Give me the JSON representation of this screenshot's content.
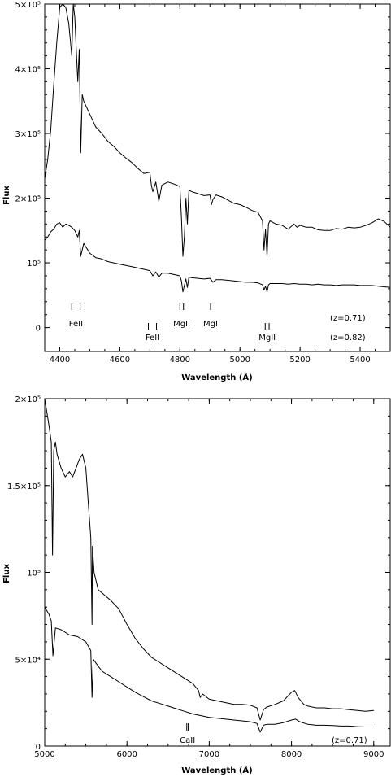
{
  "chart_data": [
    {
      "type": "line",
      "xlabel": "Wavelength (Å)",
      "ylabel": "Flux",
      "xlim": [
        4350,
        5500
      ],
      "ylim": [
        -37000,
        500000
      ],
      "xticks": [
        "4400",
        "4600",
        "4800",
        "5000",
        "5200",
        "5400"
      ],
      "xtick_values": [
        4400,
        4600,
        4800,
        5000,
        5200,
        5400
      ],
      "yticks": [
        "0",
        "10⁵",
        "2×10⁵",
        "3×10⁵",
        "4×10⁵",
        "5×10⁵"
      ],
      "ytick_values": [
        0,
        100000,
        200000,
        300000,
        400000,
        500000
      ],
      "series": [
        {
          "x": [
            4350,
            4360,
            4370,
            4380,
            4390,
            4400,
            4410,
            4420,
            4430,
            4440,
            4445,
            4450,
            4455,
            4460,
            4465,
            4470,
            4475,
            4480,
            4500,
            4520,
            4540,
            4560,
            4580,
            4600,
            4620,
            4640,
            4660,
            4680,
            4700,
            4705,
            4710,
            4720,
            4730,
            4735,
            4740,
            4760,
            4780,
            4800,
            4805,
            4810,
            4815,
            4820,
            4825,
            4830,
            4840,
            4860,
            4880,
            4900,
            4905,
            4910,
            4920,
            4940,
            4960,
            4980,
            5000,
            5020,
            5040,
            5060,
            5075,
            5080,
            5085,
            5090,
            5095,
            5100,
            5120,
            5140,
            5160,
            5180,
            5190,
            5200,
            5220,
            5240,
            5260,
            5280,
            5300,
            5320,
            5340,
            5360,
            5380,
            5400,
            5420,
            5440,
            5460,
            5480,
            5500
          ],
          "values": [
            230000,
            260000,
            305000,
            375000,
            440000,
            495000,
            500000,
            495000,
            470000,
            420000,
            500000,
            480000,
            430000,
            380000,
            430000,
            270000,
            360000,
            350000,
            330000,
            310000,
            300000,
            288000,
            280000,
            270000,
            262000,
            255000,
            246000,
            238000,
            240000,
            220000,
            210000,
            225000,
            195000,
            208000,
            220000,
            225000,
            222000,
            218000,
            170000,
            110000,
            140000,
            200000,
            160000,
            212000,
            210000,
            207000,
            204000,
            205000,
            190000,
            198000,
            205000,
            202000,
            197000,
            192000,
            190000,
            186000,
            181000,
            178000,
            165000,
            120000,
            152000,
            110000,
            160000,
            165000,
            160000,
            158000,
            152000,
            160000,
            155000,
            158000,
            155000,
            155000,
            151000,
            150000,
            150000,
            153000,
            152000,
            155000,
            154000,
            155000,
            158000,
            162000,
            168000,
            164000,
            155000
          ]
        },
        {
          "x": [
            4350,
            4360,
            4370,
            4380,
            4390,
            4400,
            4410,
            4420,
            4430,
            4440,
            4450,
            4460,
            4465,
            4470,
            4480,
            4500,
            4520,
            4540,
            4560,
            4580,
            4600,
            4620,
            4640,
            4660,
            4680,
            4700,
            4710,
            4720,
            4730,
            4740,
            4760,
            4780,
            4800,
            4805,
            4810,
            4815,
            4820,
            4825,
            4830,
            4840,
            4860,
            4880,
            4900,
            4910,
            4920,
            4940,
            4960,
            4980,
            5000,
            5020,
            5040,
            5060,
            5075,
            5080,
            5085,
            5090,
            5095,
            5100,
            5120,
            5140,
            5160,
            5180,
            5200,
            5220,
            5240,
            5260,
            5280,
            5300,
            5320,
            5340,
            5360,
            5380,
            5400,
            5420,
            5440,
            5460,
            5480,
            5500
          ],
          "values": [
            135000,
            140000,
            148000,
            152000,
            160000,
            162000,
            155000,
            160000,
            158000,
            155000,
            150000,
            140000,
            150000,
            110000,
            130000,
            115000,
            108000,
            106000,
            102000,
            100000,
            98000,
            96000,
            94000,
            92000,
            90000,
            88000,
            80000,
            86000,
            78000,
            84000,
            84000,
            82000,
            80000,
            72000,
            55000,
            65000,
            75000,
            62000,
            78000,
            77000,
            76000,
            75000,
            76000,
            70000,
            74000,
            74000,
            73000,
            72000,
            71000,
            70000,
            70000,
            69000,
            66000,
            58000,
            64000,
            55000,
            66000,
            68000,
            68000,
            68000,
            67000,
            68000,
            67000,
            67000,
            66000,
            67000,
            66000,
            66000,
            65000,
            66000,
            66000,
            66000,
            65000,
            65000,
            65000,
            64000,
            63000,
            62000
          ]
        }
      ],
      "line_markers": [
        {
          "label": "FeII",
          "wavelengths": [
            4440,
            4468
          ],
          "row": "upper"
        },
        {
          "label": "FeII",
          "wavelengths": [
            4695,
            4722
          ],
          "row": "lower"
        },
        {
          "label": "MgII",
          "wavelengths": [
            4800,
            4812
          ],
          "row": "upper"
        },
        {
          "label": "MgI",
          "wavelengths": [
            4902
          ],
          "row": "upper"
        },
        {
          "label": "MgII",
          "wavelengths": [
            5084,
            5097
          ],
          "row": "lower"
        }
      ],
      "annotations": [
        "(z=0.71)",
        "(z=0.82)"
      ]
    },
    {
      "type": "line",
      "xlabel": "Wavelength (Å)",
      "ylabel": "Flux",
      "xlim": [
        5000,
        9200
      ],
      "ylim": [
        0,
        200000
      ],
      "xticks": [
        "5000",
        "6000",
        "7000",
        "8000",
        "9000"
      ],
      "xtick_values": [
        5000,
        6000,
        7000,
        8000,
        9000
      ],
      "yticks": [
        "0",
        "5×10⁴",
        "10⁵",
        "1.5×10⁵",
        "2×10⁵"
      ],
      "ytick_values": [
        0,
        50000,
        100000,
        150000,
        200000
      ],
      "series": [
        {
          "x": [
            5000,
            5050,
            5080,
            5095,
            5110,
            5130,
            5150,
            5200,
            5250,
            5300,
            5340,
            5380,
            5420,
            5460,
            5500,
            5530,
            5560,
            5575,
            5580,
            5600,
            5650,
            5700,
            5800,
            5900,
            6000,
            6100,
            6200,
            6300,
            6400,
            6500,
            6600,
            6700,
            6800,
            6870,
            6890,
            6920,
            7000,
            7100,
            7200,
            7300,
            7400,
            7500,
            7580,
            7620,
            7660,
            7700,
            7800,
            7900,
            8000,
            8040,
            8080,
            8150,
            8200,
            8300,
            8400,
            8500,
            8600,
            8700,
            8800,
            8900,
            9000
          ],
          "values": [
            200000,
            185000,
            175000,
            110000,
            170000,
            175000,
            168000,
            160000,
            155000,
            158000,
            155000,
            160000,
            165000,
            168000,
            160000,
            140000,
            120000,
            70000,
            115000,
            100000,
            90000,
            88000,
            84000,
            79000,
            70000,
            62000,
            56000,
            51000,
            48000,
            45000,
            42000,
            39000,
            36000,
            32000,
            28000,
            30000,
            27000,
            26000,
            25000,
            24000,
            24000,
            23500,
            22000,
            15000,
            21000,
            22500,
            24000,
            26000,
            31000,
            32000,
            28000,
            24000,
            23000,
            22000,
            22000,
            21500,
            21500,
            21000,
            20500,
            20000,
            20500
          ]
        },
        {
          "x": [
            5000,
            5050,
            5080,
            5100,
            5130,
            5200,
            5300,
            5400,
            5500,
            5560,
            5575,
            5590,
            5650,
            5700,
            5800,
            5900,
            6000,
            6100,
            6200,
            6300,
            6400,
            6500,
            6600,
            6700,
            6800,
            6900,
            7000,
            7100,
            7200,
            7300,
            7400,
            7500,
            7580,
            7620,
            7660,
            7700,
            7800,
            7900,
            8000,
            8050,
            8100,
            8200,
            8300,
            8400,
            8500,
            8600,
            8700,
            8800,
            8900,
            9000
          ],
          "values": [
            80000,
            76000,
            72000,
            52000,
            68000,
            67000,
            64000,
            63000,
            60000,
            55000,
            28000,
            50000,
            46000,
            43000,
            40000,
            37000,
            34000,
            31000,
            28500,
            26000,
            24500,
            23000,
            21500,
            20000,
            18500,
            17500,
            16500,
            16000,
            15500,
            15000,
            14500,
            14000,
            13000,
            8000,
            12000,
            12500,
            12500,
            13500,
            15000,
            15500,
            14000,
            12500,
            12000,
            12000,
            11800,
            11500,
            11500,
            11200,
            11000,
            11000
          ]
        }
      ],
      "line_markers": [
        {
          "label": "CaII",
          "wavelengths": [
            6727,
            6745
          ]
        }
      ],
      "annotations": [
        "(z=0.71)"
      ]
    }
  ]
}
